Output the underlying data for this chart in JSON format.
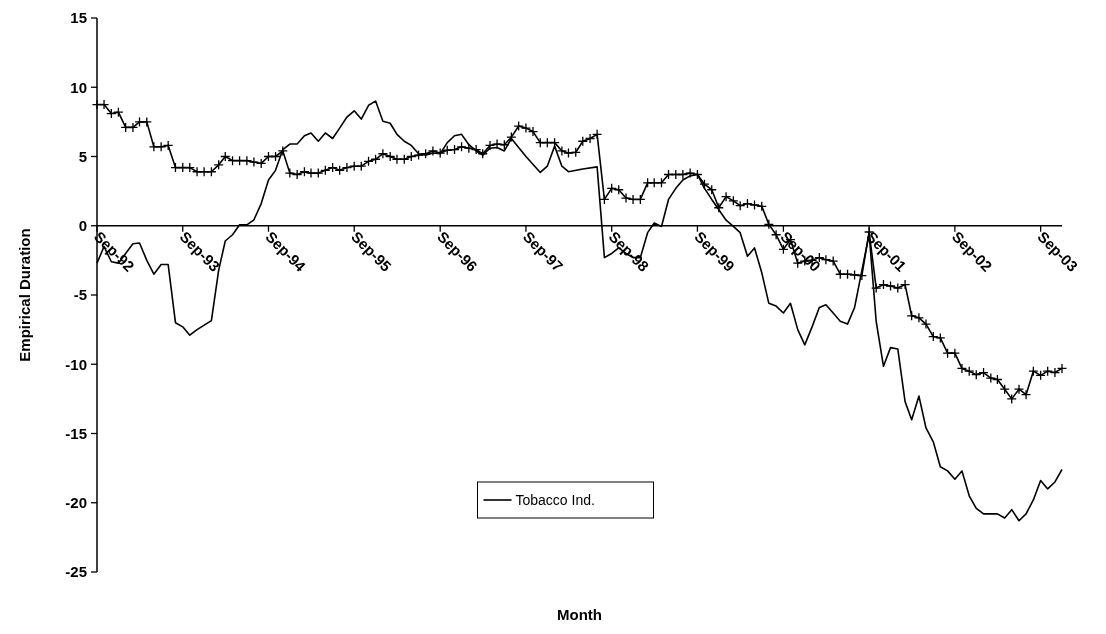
{
  "chart_data": {
    "type": "line",
    "xlabel": "Month",
    "ylabel": "Empirical Duration",
    "xlim": [
      "1992-09",
      "2003-12"
    ],
    "xticks": [
      {
        "value": "1992-09",
        "label": "Sep-92"
      },
      {
        "value": "1993-09",
        "label": "Sep-93"
      },
      {
        "value": "1994-09",
        "label": "Sep-94"
      },
      {
        "value": "1995-09",
        "label": "Sep-95"
      },
      {
        "value": "1996-09",
        "label": "Sep-96"
      },
      {
        "value": "1997-09",
        "label": "Sep-97"
      },
      {
        "value": "1998-09",
        "label": "Sep-98"
      },
      {
        "value": "1999-09",
        "label": "Sep-99"
      },
      {
        "value": "2000-09",
        "label": "Sep-00"
      },
      {
        "value": "2001-09",
        "label": "Sep-01"
      },
      {
        "value": "2002-09",
        "label": "Sep-02"
      },
      {
        "value": "2003-09",
        "label": "Sep-03"
      }
    ],
    "ylim": [
      -25,
      15
    ],
    "yticks": [
      -25,
      -20,
      -15,
      -10,
      -5,
      0,
      5,
      10,
      15
    ],
    "grid": false,
    "legend": "bottom",
    "x": [
      "1992-09",
      "1992-10",
      "1992-11",
      "1992-12",
      "1993-01",
      "1993-02",
      "1993-03",
      "1993-04",
      "1993-05",
      "1993-06",
      "1993-07",
      "1993-08",
      "1993-09",
      "1993-10",
      "1993-11",
      "1993-12",
      "1994-01",
      "1994-02",
      "1994-03",
      "1994-04",
      "1994-05",
      "1994-06",
      "1994-07",
      "1994-08",
      "1994-09",
      "1994-10",
      "1994-11",
      "1994-12",
      "1995-01",
      "1995-02",
      "1995-03",
      "1995-04",
      "1995-05",
      "1995-06",
      "1995-07",
      "1995-08",
      "1995-09",
      "1995-10",
      "1995-11",
      "1995-12",
      "1996-01",
      "1996-02",
      "1996-03",
      "1996-04",
      "1996-05",
      "1996-06",
      "1996-07",
      "1996-08",
      "1996-09",
      "1996-10",
      "1996-11",
      "1996-12",
      "1997-01",
      "1997-02",
      "1997-03",
      "1997-04",
      "1997-05",
      "1997-06",
      "1997-07",
      "1997-08",
      "1997-09",
      "1997-10",
      "1997-11",
      "1997-12",
      "1998-01",
      "1998-02",
      "1998-03",
      "1998-04",
      "1998-05",
      "1998-06",
      "1998-07",
      "1998-08",
      "1998-09",
      "1998-10",
      "1998-11",
      "1998-12",
      "1999-01",
      "1999-02",
      "1999-03",
      "1999-04",
      "1999-05",
      "1999-06",
      "1999-07",
      "1999-08",
      "1999-09",
      "1999-10",
      "1999-11",
      "1999-12",
      "2000-01",
      "2000-02",
      "2000-03",
      "2000-04",
      "2000-05",
      "2000-06",
      "2000-07",
      "2000-08",
      "2000-09",
      "2000-10",
      "2000-11",
      "2000-12",
      "2001-01",
      "2001-02",
      "2001-03",
      "2001-04",
      "2001-05",
      "2001-06",
      "2001-07",
      "2001-08",
      "2001-09",
      "2001-10",
      "2001-11",
      "2001-12",
      "2002-01",
      "2002-02",
      "2002-03",
      "2002-04",
      "2002-05",
      "2002-06",
      "2002-07",
      "2002-08",
      "2002-09",
      "2002-10",
      "2002-11",
      "2002-12",
      "2003-01",
      "2003-02",
      "2003-03",
      "2003-04",
      "2003-05",
      "2003-06",
      "2003-07",
      "2003-08",
      "2003-09",
      "2003-10",
      "2003-11",
      "2003-12"
    ],
    "series": [
      {
        "color": "#000000",
        "marker": "cross",
        "values": [
          8.75,
          8.75,
          8.1,
          8.2,
          7.1,
          7.1,
          7.5,
          7.5,
          5.7,
          5.7,
          5.8,
          4.2,
          4.2,
          4.2,
          3.9,
          3.9,
          3.9,
          4.4,
          5.0,
          4.7,
          4.7,
          4.7,
          4.6,
          4.5,
          5.0,
          5.0,
          5.4,
          3.8,
          3.7,
          3.9,
          3.8,
          3.8,
          4.0,
          4.2,
          4.0,
          4.2,
          4.3,
          4.3,
          4.65,
          4.8,
          5.2,
          5.0,
          4.8,
          4.8,
          5.0,
          5.1,
          5.2,
          5.4,
          5.25,
          5.45,
          5.5,
          5.7,
          5.6,
          5.5,
          5.2,
          5.8,
          5.9,
          5.85,
          6.4,
          7.2,
          7.05,
          6.8,
          6.0,
          6.0,
          6.0,
          5.4,
          5.25,
          5.3,
          6.1,
          6.3,
          6.6,
          1.9,
          2.7,
          2.6,
          2.0,
          1.9,
          1.9,
          3.1,
          3.1,
          3.1,
          3.7,
          3.7,
          3.7,
          3.8,
          3.7,
          3.0,
          2.6,
          1.3,
          2.1,
          1.8,
          1.45,
          1.6,
          1.5,
          1.4,
          0.1,
          -0.65,
          -1.7,
          -1.0,
          -2.7,
          -2.55,
          -2.5,
          -2.3,
          -2.45,
          -2.55,
          -3.5,
          -3.5,
          -3.55,
          -3.6,
          -0.45,
          -4.5,
          -4.25,
          -4.35,
          -4.5,
          -4.25,
          -6.5,
          -6.65,
          -7.1,
          -8.0,
          -8.1,
          -9.2,
          -9.2,
          -10.3,
          -10.5,
          -10.75,
          -10.6,
          -11.0,
          -11.1,
          -11.8,
          -12.5,
          -11.8,
          -12.2,
          -10.5,
          -10.8,
          -10.5,
          -10.6,
          -10.3
        ]
      },
      {
        "name": "Tobacco Ind.",
        "color": "#000000",
        "marker": "none",
        "x": [
          "1992-09",
          "1992-10",
          "1992-11",
          "1992-12",
          "1993-02",
          "1993-03",
          "1993-04",
          "1993-05",
          "1993-06",
          "1993-07",
          "1993-08",
          "1993-09",
          "1993-10",
          "1993-11",
          "1994-01",
          "1994-02",
          "1994-03",
          "1994-04",
          "1994-05",
          "1994-06",
          "1994-07",
          "1994-08",
          "1994-09",
          "1994-10",
          "1994-11",
          "1994-12",
          "1995-01",
          "1995-02",
          "1995-03",
          "1995-04",
          "1995-05",
          "1995-06",
          "1995-07",
          "1995-08",
          "1995-09",
          "1995-10",
          "1995-11",
          "1995-12",
          "1996-01",
          "1996-02",
          "1996-03",
          "1996-04",
          "1996-05",
          "1996-06",
          "1996-07",
          "1996-08",
          "1996-09",
          "1996-10",
          "1996-11",
          "1996-12",
          "1997-01",
          "1997-02",
          "1997-03",
          "1997-04",
          "1997-05",
          "1997-06",
          "1997-07",
          "1997-09",
          "1997-11",
          "1997-12",
          "1998-01",
          "1998-02",
          "1998-03",
          "1998-05",
          "1998-07",
          "1998-08",
          "1998-09",
          "1998-10",
          "1998-11",
          "1998-12",
          "1999-01",
          "1999-02",
          "1999-03",
          "1999-04",
          "1999-05",
          "1999-06",
          "1999-07",
          "1999-08",
          "1999-09",
          "1999-10",
          "1999-11",
          "2000-01",
          "2000-02",
          "2000-03",
          "2000-04",
          "2000-05",
          "2000-06",
          "2000-07",
          "2000-08",
          "2000-09",
          "2000-10",
          "2000-11",
          "2000-12",
          "2001-01",
          "2001-02",
          "2001-03",
          "2001-04",
          "2001-05",
          "2001-06",
          "2001-07",
          "2001-09",
          "2001-10",
          "2001-11",
          "2001-12",
          "2002-01",
          "2002-02",
          "2002-03",
          "2002-04",
          "2002-05",
          "2002-06",
          "2002-07",
          "2002-08",
          "2002-09",
          "2002-10",
          "2002-11",
          "2002-12",
          "2003-01",
          "2003-02",
          "2003-03",
          "2003-04",
          "2003-05",
          "2003-06",
          "2003-07",
          "2003-08",
          "2003-09",
          "2003-10",
          "2003-11",
          "2003-12"
        ],
        "values": [
          -2.7,
          -1.5,
          -2.6,
          -2.7,
          -1.3,
          -1.25,
          -2.5,
          -3.5,
          -2.8,
          -2.8,
          -7.0,
          -7.3,
          -7.9,
          -7.5,
          -6.85,
          -3.2,
          -1.1,
          -0.65,
          0.07,
          0.07,
          0.43,
          1.6,
          3.3,
          4.0,
          5.5,
          5.9,
          5.9,
          6.5,
          6.7,
          6.1,
          6.7,
          6.3,
          7.05,
          7.85,
          8.3,
          7.7,
          8.7,
          9.0,
          7.55,
          7.4,
          6.6,
          6.1,
          5.8,
          5.2,
          5.1,
          5.25,
          5.2,
          6.0,
          6.5,
          6.6,
          5.85,
          5.4,
          5.1,
          5.6,
          5.65,
          5.4,
          6.3,
          5.0,
          3.85,
          4.3,
          5.75,
          4.3,
          3.9,
          4.1,
          4.25,
          -2.3,
          -2.0,
          -1.6,
          -2.0,
          -2.3,
          -2.3,
          -0.5,
          0.2,
          -0.05,
          1.9,
          2.7,
          3.3,
          3.6,
          3.7,
          2.7,
          1.9,
          0.4,
          -0.05,
          -0.5,
          -2.2,
          -1.6,
          -3.4,
          -5.6,
          -5.8,
          -6.3,
          -5.6,
          -7.5,
          -8.6,
          -7.3,
          -5.9,
          -5.7,
          -6.3,
          -6.9,
          -7.1,
          -5.9,
          -0.6,
          -6.9,
          -10.15,
          -8.8,
          -8.9,
          -12.7,
          -14.0,
          -12.3,
          -14.6,
          -15.6,
          -17.4,
          -17.7,
          -18.3,
          -17.7,
          -19.5,
          -20.4,
          -20.8,
          -20.8,
          -20.8,
          -21.1,
          -20.5,
          -21.3,
          -20.8,
          -19.8,
          -18.4,
          -19.0,
          -18.5,
          -17.6
        ]
      }
    ]
  }
}
